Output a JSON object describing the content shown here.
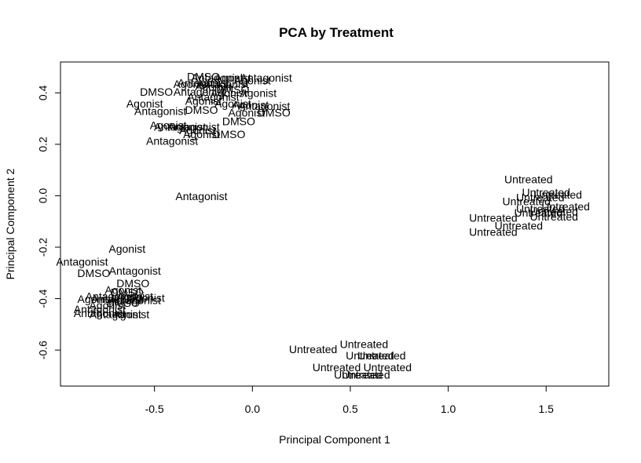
{
  "chart_data": {
    "type": "scatter",
    "title": "PCA by Treatment",
    "xlabel": "Principal Component 1",
    "ylabel": "Principal Component 2",
    "xlim": [
      -0.98,
      1.82
    ],
    "ylim": [
      -0.74,
      0.52
    ],
    "xticks": [
      "-0.5",
      "0.0",
      "0.5",
      "1.0",
      "1.5"
    ],
    "xtick_values": [
      -0.5,
      0.0,
      0.5,
      1.0,
      1.5
    ],
    "yticks": [
      "-0.6",
      "-0.4",
      "-0.2",
      "0.0",
      "0.2",
      "0.4"
    ],
    "ytick_values": [
      -0.6,
      -0.4,
      -0.2,
      0.0,
      0.2,
      0.4
    ],
    "marker": "text-label",
    "points": [
      {
        "label": "DMSO",
        "x": -0.25,
        "y": 0.46
      },
      {
        "label": "Antagonist",
        "x": -0.18,
        "y": 0.455
      },
      {
        "label": "Agonist",
        "x": -0.1,
        "y": 0.455
      },
      {
        "label": "Antagonist",
        "x": 0.07,
        "y": 0.455
      },
      {
        "label": "Agonist",
        "x": 0.0,
        "y": 0.445
      },
      {
        "label": "Antagonist",
        "x": -0.25,
        "y": 0.435
      },
      {
        "label": "Agonist",
        "x": -0.31,
        "y": 0.43
      },
      {
        "label": "Antagonist",
        "x": -0.15,
        "y": 0.43
      },
      {
        "label": "Agonist",
        "x": -0.2,
        "y": 0.42
      },
      {
        "label": "DMSO",
        "x": -0.1,
        "y": 0.41
      },
      {
        "label": "DMSO",
        "x": -0.49,
        "y": 0.4
      },
      {
        "label": "Antagonist",
        "x": -0.27,
        "y": 0.4
      },
      {
        "label": "Agonist",
        "x": -0.12,
        "y": 0.395
      },
      {
        "label": "Agonist",
        "x": 0.03,
        "y": 0.395
      },
      {
        "label": "Antagonist",
        "x": -0.2,
        "y": 0.38
      },
      {
        "label": "Agonist",
        "x": -0.25,
        "y": 0.365
      },
      {
        "label": "Agonist",
        "x": -0.1,
        "y": 0.355
      },
      {
        "label": "Agonist",
        "x": -0.01,
        "y": 0.35
      },
      {
        "label": "Agonist",
        "x": -0.55,
        "y": 0.355
      },
      {
        "label": "Antagonist",
        "x": 0.06,
        "y": 0.345
      },
      {
        "label": "DMSO",
        "x": -0.26,
        "y": 0.33
      },
      {
        "label": "Agonist",
        "x": -0.03,
        "y": 0.32
      },
      {
        "label": "Antagonist",
        "x": -0.47,
        "y": 0.325
      },
      {
        "label": "DMSO",
        "x": 0.11,
        "y": 0.32
      },
      {
        "label": "DMSO",
        "x": -0.07,
        "y": 0.285
      },
      {
        "label": "Agonist",
        "x": -0.43,
        "y": 0.27
      },
      {
        "label": "Antagonist",
        "x": -0.37,
        "y": 0.265
      },
      {
        "label": "Antagonist",
        "x": -0.3,
        "y": 0.265
      },
      {
        "label": "Agonist",
        "x": -0.28,
        "y": 0.25
      },
      {
        "label": "Agonist",
        "x": -0.26,
        "y": 0.235
      },
      {
        "label": "DMSO",
        "x": -0.12,
        "y": 0.235
      },
      {
        "label": "Antagonist",
        "x": -0.41,
        "y": 0.21
      },
      {
        "label": "Antagonist",
        "x": -0.26,
        "y": -0.005
      },
      {
        "label": "Agonist",
        "x": -0.64,
        "y": -0.21
      },
      {
        "label": "Antagonist",
        "x": -0.87,
        "y": -0.26
      },
      {
        "label": "DMSO",
        "x": -0.81,
        "y": -0.305
      },
      {
        "label": "Antagonist",
        "x": -0.6,
        "y": -0.295
      },
      {
        "label": "DMSO",
        "x": -0.61,
        "y": -0.345
      },
      {
        "label": "Agonist",
        "x": -0.66,
        "y": -0.37
      },
      {
        "label": "DMSO",
        "x": -0.64,
        "y": -0.38
      },
      {
        "label": "Antagonist",
        "x": -0.72,
        "y": -0.395
      },
      {
        "label": "Agonist",
        "x": -0.6,
        "y": -0.395
      },
      {
        "label": "Antagonist",
        "x": -0.58,
        "y": -0.4
      },
      {
        "label": "Agonist",
        "x": -0.8,
        "y": -0.405
      },
      {
        "label": "Antagonist",
        "x": -0.69,
        "y": -0.405
      },
      {
        "label": "Antagonist",
        "x": -0.6,
        "y": -0.41
      },
      {
        "label": "DMSO",
        "x": -0.66,
        "y": -0.42
      },
      {
        "label": "Agonist",
        "x": -0.74,
        "y": -0.43
      },
      {
        "label": "Antagonist",
        "x": -0.78,
        "y": -0.445
      },
      {
        "label": "Antagonist",
        "x": -0.78,
        "y": -0.46
      },
      {
        "label": "Agonist",
        "x": -0.62,
        "y": -0.465
      },
      {
        "label": "Antagonist",
        "x": -0.7,
        "y": -0.465
      },
      {
        "label": "Untreated",
        "x": 1.41,
        "y": 0.06
      },
      {
        "label": "Untreated",
        "x": 1.5,
        "y": 0.01
      },
      {
        "label": "Untreated",
        "x": 1.56,
        "y": 0.0
      },
      {
        "label": "Untreated",
        "x": 1.47,
        "y": -0.01
      },
      {
        "label": "Untreated",
        "x": 1.4,
        "y": -0.025
      },
      {
        "label": "Untreated",
        "x": 1.6,
        "y": -0.045
      },
      {
        "label": "Untreated",
        "x": 1.47,
        "y": -0.055
      },
      {
        "label": "Untreated",
        "x": 1.54,
        "y": -0.065
      },
      {
        "label": "Untreated",
        "x": 1.46,
        "y": -0.07
      },
      {
        "label": "Untreated",
        "x": 1.23,
        "y": -0.09
      },
      {
        "label": "Untreated",
        "x": 1.54,
        "y": -0.085
      },
      {
        "label": "Untreated",
        "x": 1.36,
        "y": -0.12
      },
      {
        "label": "Untreated",
        "x": 1.23,
        "y": -0.145
      },
      {
        "label": "Untreated",
        "x": 0.57,
        "y": -0.58
      },
      {
        "label": "Untreated",
        "x": 0.31,
        "y": -0.6
      },
      {
        "label": "Untreated",
        "x": 0.6,
        "y": -0.625
      },
      {
        "label": "Untreated",
        "x": 0.66,
        "y": -0.625
      },
      {
        "label": "Untreated",
        "x": 0.43,
        "y": -0.67
      },
      {
        "label": "Untreated",
        "x": 0.69,
        "y": -0.67
      },
      {
        "label": "Untreated",
        "x": 0.54,
        "y": -0.7
      },
      {
        "label": "Untreated",
        "x": 0.58,
        "y": -0.7
      }
    ]
  }
}
